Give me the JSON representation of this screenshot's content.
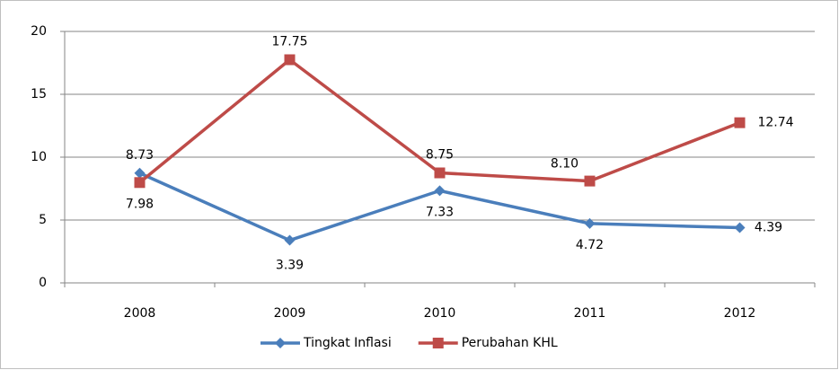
{
  "chart_data": {
    "type": "line",
    "categories": [
      "2008",
      "2009",
      "2010",
      "2011",
      "2012"
    ],
    "series": [
      {
        "name": "Tingkat Inflasi",
        "color": "#4a7ebb",
        "marker": "diamond",
        "values": [
          8.73,
          3.39,
          7.33,
          4.72,
          4.39
        ],
        "value_labels": [
          "8.73",
          "3.39",
          "7.33",
          "4.72",
          "4.39"
        ]
      },
      {
        "name": "Perubahan KHL",
        "color": "#be4b48",
        "marker": "square",
        "values": [
          7.98,
          17.75,
          8.75,
          8.1,
          12.74
        ],
        "value_labels": [
          "7.98",
          "17.75",
          "8.75",
          "8.10",
          "12.74"
        ]
      }
    ],
    "ylim": [
      0,
      20
    ],
    "yticks": [
      0,
      5,
      10,
      15,
      20
    ],
    "grid": true,
    "legend": "bottom"
  }
}
